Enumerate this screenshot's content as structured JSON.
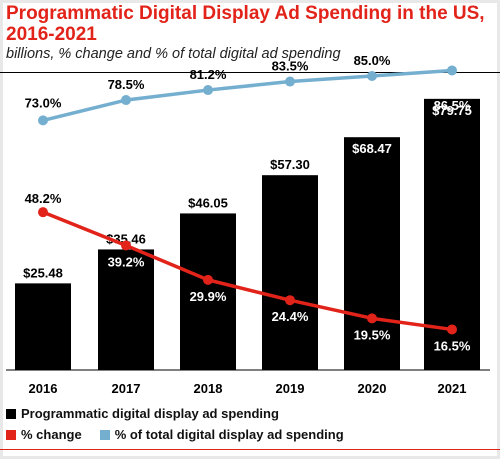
{
  "header": {
    "title": "Programmatic Digital Display Ad Spending in the US, 2016-2021",
    "subtitle": "billions, % change and % of total digital ad spending"
  },
  "legend": {
    "items": [
      {
        "label": "Programmatic digital display ad spending",
        "color": "#000000"
      },
      {
        "label": "% change",
        "color": "#e2231a"
      },
      {
        "label": "% of total digital display ad spending",
        "color": "#74afd0"
      }
    ]
  },
  "chart_data": {
    "type": "bar",
    "categories": [
      "2016",
      "2017",
      "2018",
      "2019",
      "2020",
      "2021"
    ],
    "series": [
      {
        "name": "Programmatic digital display ad spending",
        "type": "bar",
        "color": "#000000",
        "values": [
          25.48,
          35.46,
          46.05,
          57.3,
          68.47,
          79.75
        ],
        "labels": [
          "$25.48",
          "$35.46",
          "$46.05",
          "$57.30",
          "$68.47",
          "$79.75"
        ]
      },
      {
        "name": "% change",
        "type": "line",
        "color": "#e2231a",
        "values": [
          48.2,
          39.2,
          29.9,
          24.4,
          19.5,
          16.5
        ],
        "labels": [
          "48.2%",
          "39.2%",
          "29.9%",
          "24.4%",
          "19.5%",
          "16.5%"
        ]
      },
      {
        "name": "% of total digital display ad spending",
        "type": "line",
        "color": "#74afd0",
        "values": [
          73.0,
          78.5,
          81.2,
          83.5,
          85.0,
          86.5
        ],
        "labels": [
          "73.0%",
          "78.5%",
          "81.2%",
          "83.5%",
          "85.0%",
          "86.5%"
        ]
      }
    ],
    "legend_position": "bottom",
    "grid": false
  }
}
